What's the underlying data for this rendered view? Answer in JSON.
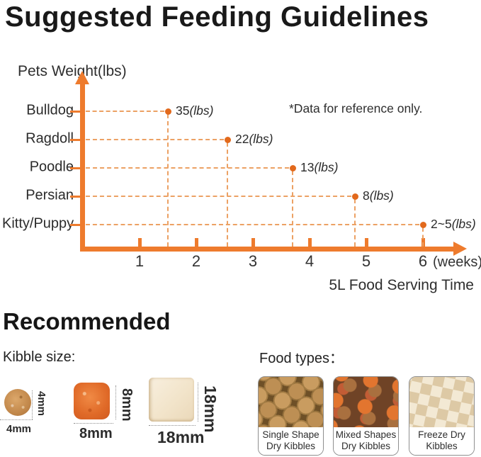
{
  "page": {
    "title": "Suggested Feeding Guidelines"
  },
  "chart_data": {
    "type": "scatter",
    "title": "Suggested Feeding Guidelines",
    "y_axis_title": "Pets Weight(lbs)",
    "note": "*Data for reference only.",
    "x_axis_subtitle": "5L Food Serving Time",
    "x_unit": "(weeks)",
    "x_ticks": [
      1,
      2,
      3,
      4,
      5,
      6
    ],
    "x_range": [
      0,
      6.5
    ],
    "grid": "dashed-leader-lines",
    "y_categories": [
      "Bulldog",
      "Ragdoll",
      "Poodle",
      "Persian",
      "Kitty/Puppy"
    ],
    "points": [
      {
        "pet": "Bulldog",
        "weight_value": "35",
        "weight_unit": "(lbs)",
        "week": 1.5
      },
      {
        "pet": "Ragdoll",
        "weight_value": "22",
        "weight_unit": "(lbs)",
        "week": 2.55
      },
      {
        "pet": "Poodle",
        "weight_value": "13",
        "weight_unit": "(lbs)",
        "week": 3.7
      },
      {
        "pet": "Persian",
        "weight_value": "8",
        "weight_unit": "(lbs)",
        "week": 4.8
      },
      {
        "pet": "Kitty/Puppy",
        "weight_value": "2~5",
        "weight_unit": "(lbs)",
        "week": 6
      }
    ],
    "colors": {
      "axis": "#ee7b2d",
      "point": "#e2691c",
      "dashed_line": "#eca164",
      "text": "#2e2e2e"
    }
  },
  "recommended": {
    "heading": "Recommended",
    "kibble_size": {
      "label": "Kibble size:",
      "items": [
        {
          "shape": "round kibble",
          "size": "4mm"
        },
        {
          "shape": "square kibble",
          "size": "8mm"
        },
        {
          "shape": "large square kibble",
          "size": "18mm"
        }
      ]
    },
    "food_types": {
      "label": "Food types：",
      "cards": [
        {
          "line1": "Single Shape",
          "line2": "Dry Kibbles"
        },
        {
          "line1": "Mixed Shapes",
          "line2": "Dry Kibbles"
        },
        {
          "line1": "Freeze Dry",
          "line2": "Kibbles"
        }
      ]
    }
  }
}
